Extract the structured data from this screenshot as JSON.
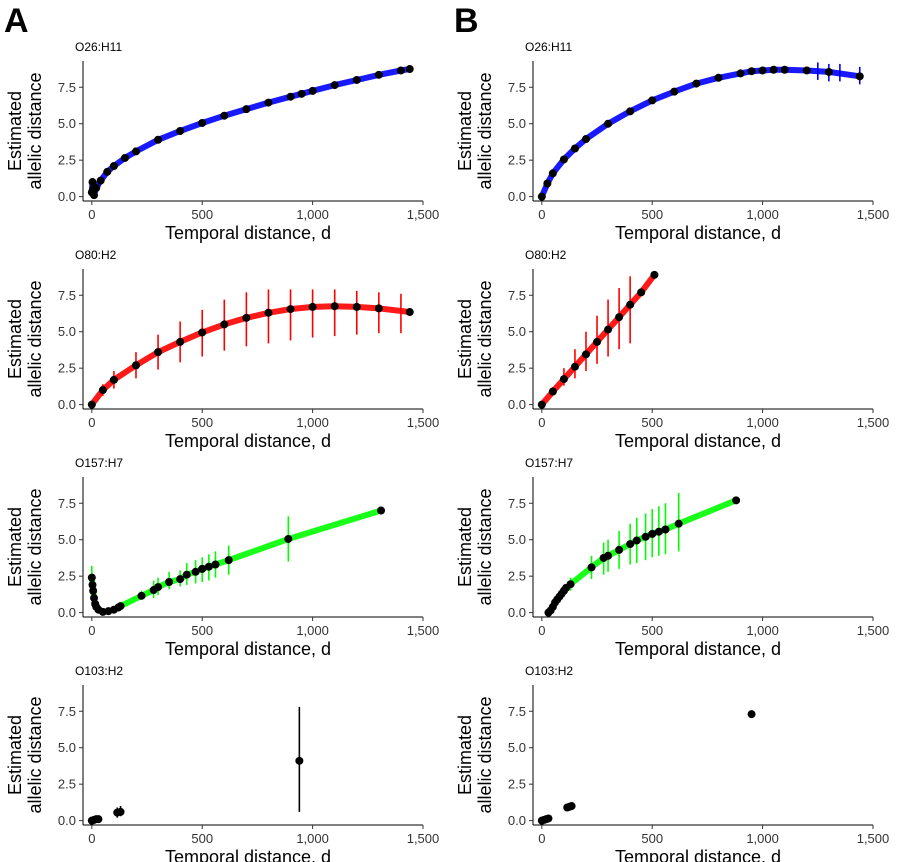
{
  "figure": {
    "panels": [
      {
        "letter": "A"
      },
      {
        "letter": "B"
      }
    ]
  },
  "chart_data": [
    {
      "id": "A1",
      "panel": "A",
      "type": "scatter",
      "title": "O26:H11",
      "color": "#0000ff",
      "xlabel": "Temporal distance, d",
      "ylabel": [
        "Estimated",
        "allelic distance"
      ],
      "xlim": [
        -40,
        1500
      ],
      "ylim": [
        -0.3,
        9.3
      ],
      "xticks": [
        0,
        500,
        1000,
        1500
      ],
      "xtick_labels": [
        "0",
        "500",
        "1,000",
        "1,500"
      ],
      "yticks": [
        0,
        2.5,
        5,
        7.5
      ],
      "ytick_labels": [
        "0.0",
        "2.5",
        "5.0",
        "7.5"
      ],
      "points": [
        [
          0,
          0.3
        ],
        [
          3,
          1.0
        ],
        [
          6,
          0.5
        ],
        [
          10,
          0.1
        ],
        [
          20,
          0.6
        ],
        [
          40,
          1.1
        ],
        [
          70,
          1.7
        ],
        [
          100,
          2.1
        ],
        [
          150,
          2.65
        ],
        [
          200,
          3.1
        ],
        [
          300,
          3.9
        ],
        [
          400,
          4.5
        ],
        [
          500,
          5.05
        ],
        [
          600,
          5.55
        ],
        [
          700,
          6.0
        ],
        [
          800,
          6.45
        ],
        [
          900,
          6.85
        ],
        [
          950,
          7.05
        ],
        [
          1000,
          7.25
        ],
        [
          1100,
          7.65
        ],
        [
          1200,
          8.0
        ],
        [
          1300,
          8.35
        ],
        [
          1400,
          8.65
        ],
        [
          1440,
          8.75
        ]
      ],
      "errors": [
        [
          0,
          0.0,
          0.6
        ],
        [
          1440,
          8.6,
          8.9
        ]
      ]
    },
    {
      "id": "B1",
      "panel": "B",
      "type": "scatter",
      "title": "O26:H11",
      "color": "#0000ff",
      "xlabel": "Temporal distance, d",
      "ylabel": [
        "Estimated",
        "allelic distance"
      ],
      "xlim": [
        -40,
        1500
      ],
      "ylim": [
        -0.3,
        9.3
      ],
      "xticks": [
        0,
        500,
        1000,
        1500
      ],
      "xtick_labels": [
        "0",
        "500",
        "1,000",
        "1,500"
      ],
      "yticks": [
        0,
        2.5,
        5,
        7.5
      ],
      "ytick_labels": [
        "0.0",
        "2.5",
        "5.0",
        "7.5"
      ],
      "points": [
        [
          0,
          0.0
        ],
        [
          25,
          0.9
        ],
        [
          50,
          1.6
        ],
        [
          100,
          2.55
        ],
        [
          150,
          3.3
        ],
        [
          200,
          3.95
        ],
        [
          300,
          5.0
        ],
        [
          400,
          5.85
        ],
        [
          500,
          6.6
        ],
        [
          600,
          7.2
        ],
        [
          700,
          7.75
        ],
        [
          800,
          8.15
        ],
        [
          900,
          8.45
        ],
        [
          950,
          8.6
        ],
        [
          1000,
          8.65
        ],
        [
          1050,
          8.7
        ],
        [
          1100,
          8.7
        ],
        [
          1200,
          8.65
        ],
        [
          1300,
          8.55
        ],
        [
          1440,
          8.25
        ]
      ],
      "errors": [
        [
          1250,
          8.0,
          9.2
        ],
        [
          1300,
          7.9,
          9.1
        ],
        [
          1350,
          7.9,
          9.1
        ],
        [
          1440,
          7.7,
          8.9
        ]
      ]
    },
    {
      "id": "A2",
      "panel": "A",
      "type": "scatter",
      "title": "O80:H2",
      "color": "#ff0000",
      "xlabel": "Temporal distance, d",
      "ylabel": [
        "Estimated",
        "allelic distance"
      ],
      "xlim": [
        -40,
        1500
      ],
      "ylim": [
        -0.3,
        9.3
      ],
      "xticks": [
        0,
        500,
        1000,
        1500
      ],
      "xtick_labels": [
        "0",
        "500",
        "1,000",
        "1,500"
      ],
      "yticks": [
        0,
        2.5,
        5,
        7.5
      ],
      "ytick_labels": [
        "0.0",
        "2.5",
        "5.0",
        "7.5"
      ],
      "points": [
        [
          0,
          0.0
        ],
        [
          50,
          1.0
        ],
        [
          100,
          1.7
        ],
        [
          200,
          2.7
        ],
        [
          300,
          3.6
        ],
        [
          400,
          4.3
        ],
        [
          500,
          4.95
        ],
        [
          600,
          5.5
        ],
        [
          700,
          5.95
        ],
        [
          800,
          6.3
        ],
        [
          900,
          6.55
        ],
        [
          1000,
          6.7
        ],
        [
          1100,
          6.75
        ],
        [
          1200,
          6.7
        ],
        [
          1300,
          6.6
        ],
        [
          1440,
          6.35
        ]
      ],
      "errors": [
        [
          50,
          0.6,
          1.4
        ],
        [
          100,
          1.1,
          2.3
        ],
        [
          200,
          1.8,
          3.6
        ],
        [
          300,
          2.4,
          4.8
        ],
        [
          400,
          2.9,
          5.7
        ],
        [
          500,
          3.3,
          6.5
        ],
        [
          600,
          3.7,
          7.2
        ],
        [
          700,
          4.0,
          7.7
        ],
        [
          800,
          4.2,
          7.9
        ],
        [
          900,
          4.4,
          7.9
        ],
        [
          1000,
          4.6,
          7.9
        ],
        [
          1100,
          4.7,
          7.9
        ],
        [
          1200,
          4.8,
          7.8
        ],
        [
          1300,
          4.9,
          7.7
        ],
        [
          1400,
          4.9,
          7.6
        ]
      ]
    },
    {
      "id": "B2",
      "panel": "B",
      "type": "scatter",
      "title": "O80:H2",
      "color": "#ff0000",
      "xlabel": "Temporal distance, d",
      "ylabel": [
        "Estimated",
        "allelic distance"
      ],
      "xlim": [
        -40,
        1500
      ],
      "ylim": [
        -0.3,
        9.3
      ],
      "xticks": [
        0,
        500,
        1000,
        1500
      ],
      "xtick_labels": [
        "0",
        "500",
        "1,000",
        "1,500"
      ],
      "yticks": [
        0,
        2.5,
        5,
        7.5
      ],
      "ytick_labels": [
        "0.0",
        "2.5",
        "5.0",
        "7.5"
      ],
      "points": [
        [
          0,
          0.0
        ],
        [
          50,
          0.9
        ],
        [
          100,
          1.75
        ],
        [
          150,
          2.6
        ],
        [
          200,
          3.45
        ],
        [
          250,
          4.3
        ],
        [
          300,
          5.15
        ],
        [
          350,
          6.0
        ],
        [
          400,
          6.85
        ],
        [
          450,
          7.7
        ],
        [
          510,
          8.9
        ]
      ],
      "errors": [
        [
          50,
          0.7,
          1.2
        ],
        [
          100,
          1.3,
          2.5
        ],
        [
          150,
          1.8,
          3.8
        ],
        [
          200,
          2.3,
          5.0
        ],
        [
          250,
          2.8,
          6.1
        ],
        [
          300,
          3.3,
          7.2
        ],
        [
          350,
          3.8,
          8.0
        ],
        [
          400,
          4.2,
          8.8
        ]
      ]
    },
    {
      "id": "A3",
      "panel": "A",
      "type": "scatter",
      "title": "O157:H7",
      "color": "#00ff00",
      "xlabel": "Temporal distance, d",
      "ylabel": [
        "Estimated",
        "allelic distance"
      ],
      "xlim": [
        -40,
        1500
      ],
      "ylim": [
        -0.3,
        9.3
      ],
      "xticks": [
        0,
        500,
        1000,
        1500
      ],
      "xtick_labels": [
        "0",
        "500",
        "1,000",
        "1,500"
      ],
      "yticks": [
        0,
        2.5,
        5,
        7.5
      ],
      "ytick_labels": [
        "0.0",
        "2.5",
        "5.0",
        "7.5"
      ],
      "points": [
        [
          0,
          2.4
        ],
        [
          3,
          1.9
        ],
        [
          6,
          1.5
        ],
        [
          10,
          1.0
        ],
        [
          15,
          0.6
        ],
        [
          20,
          0.4
        ],
        [
          30,
          0.2
        ],
        [
          50,
          0.05
        ],
        [
          75,
          0.1
        ],
        [
          100,
          0.2
        ],
        [
          120,
          0.35
        ],
        [
          130,
          0.45
        ],
        [
          225,
          1.15
        ],
        [
          280,
          1.55
        ],
        [
          300,
          1.75
        ],
        [
          350,
          2.1
        ],
        [
          400,
          2.3
        ],
        [
          430,
          2.6
        ],
        [
          470,
          2.8
        ],
        [
          500,
          3.0
        ],
        [
          530,
          3.15
        ],
        [
          560,
          3.3
        ],
        [
          620,
          3.6
        ],
        [
          890,
          5.05
        ],
        [
          1310,
          7.0
        ]
      ],
      "errors": [
        [
          0,
          1.4,
          3.2
        ],
        [
          225,
          0.9,
          1.5
        ],
        [
          280,
          1.0,
          2.2
        ],
        [
          300,
          1.2,
          2.4
        ],
        [
          350,
          1.6,
          2.8
        ],
        [
          400,
          1.8,
          2.9
        ],
        [
          430,
          1.9,
          3.4
        ],
        [
          470,
          2.0,
          3.6
        ],
        [
          500,
          2.1,
          3.8
        ],
        [
          530,
          2.2,
          4.0
        ],
        [
          560,
          2.4,
          4.2
        ],
        [
          620,
          2.6,
          4.6
        ],
        [
          890,
          3.5,
          6.6
        ]
      ]
    },
    {
      "id": "B3",
      "panel": "B",
      "type": "scatter",
      "title": "O157:H7",
      "color": "#00ff00",
      "xlabel": "Temporal distance, d",
      "ylabel": [
        "Estimated",
        "allelic distance"
      ],
      "xlim": [
        -40,
        1500
      ],
      "ylim": [
        -0.3,
        9.3
      ],
      "xticks": [
        0,
        500,
        1000,
        1500
      ],
      "xtick_labels": [
        "0",
        "500",
        "1,000",
        "1,500"
      ],
      "yticks": [
        0,
        2.5,
        5,
        7.5
      ],
      "ytick_labels": [
        "0.0",
        "2.5",
        "5.0",
        "7.5"
      ],
      "points": [
        [
          30,
          0.0
        ],
        [
          40,
          0.15
        ],
        [
          50,
          0.4
        ],
        [
          60,
          0.7
        ],
        [
          70,
          0.9
        ],
        [
          80,
          1.1
        ],
        [
          90,
          1.3
        ],
        [
          100,
          1.5
        ],
        [
          110,
          1.7
        ],
        [
          130,
          1.95
        ],
        [
          225,
          3.1
        ],
        [
          280,
          3.75
        ],
        [
          300,
          3.9
        ],
        [
          350,
          4.3
        ],
        [
          400,
          4.7
        ],
        [
          430,
          4.95
        ],
        [
          470,
          5.2
        ],
        [
          500,
          5.4
        ],
        [
          530,
          5.55
        ],
        [
          560,
          5.7
        ],
        [
          620,
          6.1
        ],
        [
          880,
          7.7
        ]
      ],
      "errors": [
        [
          100,
          1.1,
          1.9
        ],
        [
          130,
          1.5,
          2.4
        ],
        [
          225,
          2.3,
          3.9
        ],
        [
          280,
          2.6,
          4.8
        ],
        [
          300,
          2.8,
          5.0
        ],
        [
          350,
          3.0,
          5.6
        ],
        [
          400,
          3.3,
          6.1
        ],
        [
          430,
          3.4,
          6.5
        ],
        [
          470,
          3.6,
          6.8
        ],
        [
          500,
          3.8,
          7.1
        ],
        [
          530,
          3.9,
          7.3
        ],
        [
          560,
          4.0,
          7.5
        ],
        [
          620,
          4.2,
          8.2
        ]
      ]
    },
    {
      "id": "A4",
      "panel": "A",
      "type": "scatter",
      "title": "O103:H2",
      "color": "#000000",
      "xlabel": "Temporal distance, d",
      "ylabel": [
        "Estimated",
        "allelic distance"
      ],
      "xlim": [
        -40,
        1500
      ],
      "ylim": [
        -0.3,
        9.3
      ],
      "xticks": [
        0,
        500,
        1000,
        1500
      ],
      "xtick_labels": [
        "0",
        "500",
        "1,000",
        "1,500"
      ],
      "yticks": [
        0,
        2.5,
        5,
        7.5
      ],
      "ytick_labels": [
        "0.0",
        "2.5",
        "5.0",
        "7.5"
      ],
      "points": [
        [
          0,
          0.0
        ],
        [
          10,
          0.05
        ],
        [
          20,
          0.1
        ],
        [
          30,
          0.1
        ],
        [
          115,
          0.55
        ],
        [
          130,
          0.6
        ],
        [
          940,
          4.1
        ]
      ],
      "errors": [
        [
          115,
          0.2,
          0.9
        ],
        [
          130,
          0.3,
          1.0
        ],
        [
          940,
          0.6,
          7.8
        ]
      ]
    },
    {
      "id": "B4",
      "panel": "B",
      "type": "scatter",
      "title": "O103:H2",
      "color": "#000000",
      "xlabel": "Temporal distance, d",
      "ylabel": [
        "Estimated",
        "allelic distance"
      ],
      "xlim": [
        -40,
        1500
      ],
      "ylim": [
        -0.3,
        9.3
      ],
      "xticks": [
        0,
        500,
        1000,
        1500
      ],
      "xtick_labels": [
        "0",
        "500",
        "1,000",
        "1,500"
      ],
      "yticks": [
        0,
        2.5,
        5,
        7.5
      ],
      "ytick_labels": [
        "0.0",
        "2.5",
        "5.0",
        "7.5"
      ],
      "points": [
        [
          0,
          0.0
        ],
        [
          10,
          0.05
        ],
        [
          20,
          0.1
        ],
        [
          30,
          0.15
        ],
        [
          115,
          0.9
        ],
        [
          125,
          0.95
        ],
        [
          135,
          1.0
        ],
        [
          950,
          7.3
        ]
      ],
      "errors": []
    }
  ]
}
